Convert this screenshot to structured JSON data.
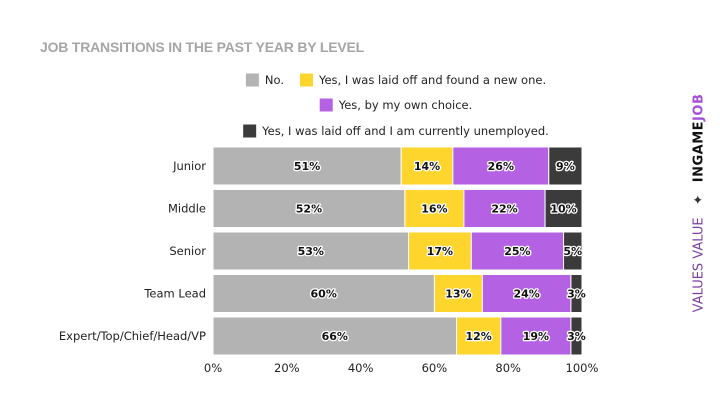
{
  "chart_data": {
    "type": "bar",
    "orientation": "horizontal",
    "stacked": true,
    "title": "JOB TRANSITIONS IN THE PAST YEAR BY LEVEL",
    "categories": [
      "Junior",
      "Middle",
      "Senior",
      "Team Lead",
      "Expert/Top/Chief/Head/VP"
    ],
    "series": [
      {
        "name": "No.",
        "color": "#b3b3b3",
        "values": [
          51,
          52,
          53,
          60,
          66
        ],
        "labels": [
          "51%",
          "52%",
          "53%",
          "60%",
          "66%"
        ]
      },
      {
        "name": "Yes, I was laid off and found a new one.",
        "color": "#fdd52c",
        "values": [
          14,
          16,
          17,
          13,
          12
        ],
        "labels": [
          "14%",
          "16%",
          "17%",
          "13%",
          "12%"
        ]
      },
      {
        "name": "Yes, by my own choice.",
        "color": "#b561e3",
        "values": [
          26,
          22,
          25,
          24,
          19
        ],
        "labels": [
          "26%",
          "22%",
          "25%",
          "24%",
          "19%"
        ]
      },
      {
        "name": "Yes, I was laid off and I am currently unemployed.",
        "color": "#3b3b3b",
        "values": [
          9,
          10,
          5,
          3,
          3
        ],
        "labels": [
          "9%",
          "10%",
          "5%",
          "3%",
          "3%"
        ]
      }
    ],
    "xlim": [
      0,
      100
    ],
    "xticks": [
      0,
      20,
      40,
      60,
      80,
      100
    ],
    "xtick_labels": [
      "0%",
      "20%",
      "40%",
      "60%",
      "80%",
      "100%"
    ],
    "grid": false,
    "legend_position": "top"
  },
  "brand": {
    "tagline": "VALUES VALUE",
    "separator": "✦",
    "logo_main": "INGAME",
    "logo_accent": "JOB"
  }
}
